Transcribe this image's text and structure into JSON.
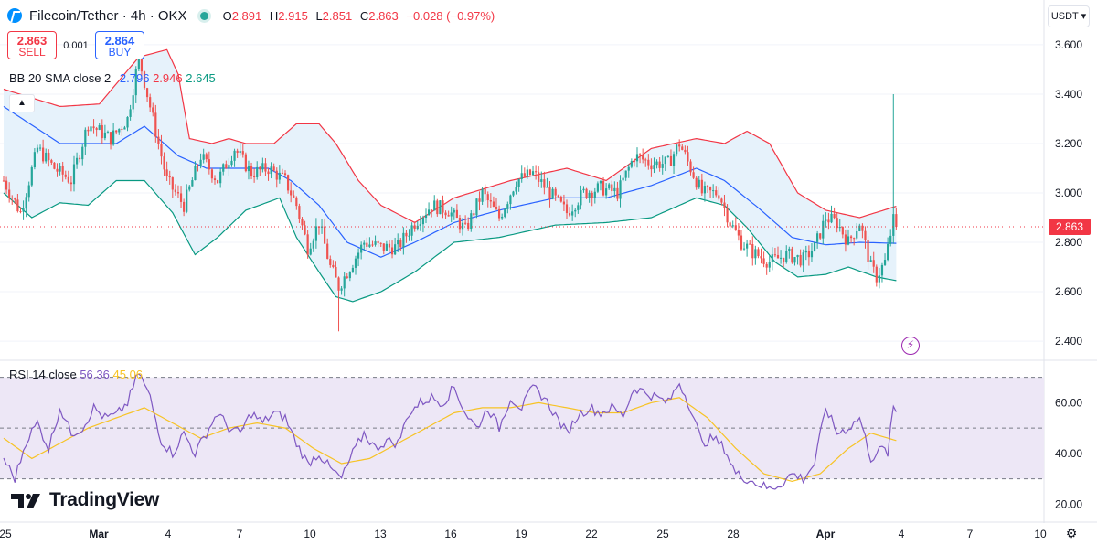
{
  "header": {
    "symbol": "Filecoin/Tether · 4h · OKX",
    "open_label": "O",
    "open": "2.891",
    "high_label": "H",
    "high": "2.915",
    "low_label": "L",
    "low": "2.851",
    "close_label": "C",
    "close": "2.863",
    "change": "−0.028 (−0.97%)"
  },
  "trade": {
    "sell_price": "2.863",
    "sell_label": "SELL",
    "spread": "0.001",
    "buy_price": "2.864",
    "buy_label": "BUY"
  },
  "bb_legend": {
    "title": "BB 20 SMA close 2",
    "basis": "2.796",
    "upper": "2.946",
    "lower": "2.645"
  },
  "rsi_legend": {
    "title": "RSI 14 close",
    "rsi": "56.36",
    "ma": "45.06"
  },
  "currency": "USDT",
  "last_price": "2.863",
  "brand": "TradingView",
  "colors": {
    "up": "#26a69a",
    "down": "#ef5350",
    "upper": "#f23645",
    "basis": "#2962ff",
    "lower": "#089981",
    "band_fill": "#e6f2fb",
    "rsi": "#7e57c2",
    "rsi_ma": "#f7c325",
    "rsi_zone": "#ede7f6"
  },
  "chart_data": [
    {
      "type": "candlestick",
      "title": "Filecoin/Tether · 4h · OKX",
      "x_ticks": [
        "25",
        "Mar",
        "4",
        "7",
        "10",
        "13",
        "16",
        "19",
        "22",
        "25",
        "28",
        "Apr",
        "4",
        "7",
        "10"
      ],
      "y_ticks": [
        "3.600",
        "3.400",
        "3.200",
        "3.000",
        "2.800",
        "2.600",
        "2.400"
      ],
      "ylim": [
        2.33,
        3.67
      ],
      "last": 2.863,
      "anchors": [
        {
          "t": 0,
          "c": 3.05
        },
        {
          "t": 6,
          "c": 2.92
        },
        {
          "t": 12,
          "c": 3.18
        },
        {
          "t": 18,
          "c": 3.1
        },
        {
          "t": 24,
          "c": 3.05
        },
        {
          "t": 30,
          "c": 3.28
        },
        {
          "t": 38,
          "c": 3.22
        },
        {
          "t": 44,
          "c": 3.3
        },
        {
          "t": 48,
          "c": 3.55
        },
        {
          "t": 52,
          "c": 3.35
        },
        {
          "t": 58,
          "c": 3.05
        },
        {
          "t": 64,
          "c": 2.95
        },
        {
          "t": 70,
          "c": 3.15
        },
        {
          "t": 76,
          "c": 3.05
        },
        {
          "t": 82,
          "c": 3.18
        },
        {
          "t": 88,
          "c": 3.08
        },
        {
          "t": 94,
          "c": 3.1
        },
        {
          "t": 100,
          "c": 3.05
        },
        {
          "t": 104,
          "c": 2.95
        },
        {
          "t": 108,
          "c": 2.78
        },
        {
          "t": 112,
          "c": 2.88
        },
        {
          "t": 116,
          "c": 2.7
        },
        {
          "t": 119,
          "c": 2.62
        },
        {
          "t": 124,
          "c": 2.72
        },
        {
          "t": 128,
          "c": 2.8
        },
        {
          "t": 134,
          "c": 2.78
        },
        {
          "t": 140,
          "c": 2.78
        },
        {
          "t": 146,
          "c": 2.88
        },
        {
          "t": 152,
          "c": 2.95
        },
        {
          "t": 158,
          "c": 2.93
        },
        {
          "t": 164,
          "c": 2.85
        },
        {
          "t": 170,
          "c": 3.0
        },
        {
          "t": 176,
          "c": 2.9
        },
        {
          "t": 182,
          "c": 3.05
        },
        {
          "t": 188,
          "c": 3.08
        },
        {
          "t": 194,
          "c": 3.0
        },
        {
          "t": 200,
          "c": 2.92
        },
        {
          "t": 206,
          "c": 3.0
        },
        {
          "t": 212,
          "c": 3.02
        },
        {
          "t": 218,
          "c": 3.0
        },
        {
          "t": 224,
          "c": 3.15
        },
        {
          "t": 230,
          "c": 3.12
        },
        {
          "t": 236,
          "c": 3.12
        },
        {
          "t": 240,
          "c": 3.2
        },
        {
          "t": 244,
          "c": 3.1
        },
        {
          "t": 248,
          "c": 3.0
        },
        {
          "t": 254,
          "c": 3.0
        },
        {
          "t": 258,
          "c": 2.88
        },
        {
          "t": 262,
          "c": 2.8
        },
        {
          "t": 266,
          "c": 2.76
        },
        {
          "t": 272,
          "c": 2.72
        },
        {
          "t": 278,
          "c": 2.75
        },
        {
          "t": 284,
          "c": 2.73
        },
        {
          "t": 288,
          "c": 2.78
        },
        {
          "t": 292,
          "c": 2.9
        },
        {
          "t": 296,
          "c": 2.88
        },
        {
          "t": 300,
          "c": 2.8
        },
        {
          "t": 304,
          "c": 2.88
        },
        {
          "t": 308,
          "c": 2.7
        },
        {
          "t": 310,
          "c": 2.66
        },
        {
          "t": 313,
          "c": 2.72
        },
        {
          "t": 316,
          "c": 2.89
        },
        {
          "t": 317,
          "c": 2.863
        }
      ],
      "basis_anchors": [
        {
          "t": 0,
          "v": 3.35
        },
        {
          "t": 20,
          "v": 3.2
        },
        {
          "t": 40,
          "v": 3.2
        },
        {
          "t": 50,
          "v": 3.27
        },
        {
          "t": 62,
          "v": 3.15
        },
        {
          "t": 72,
          "v": 3.1
        },
        {
          "t": 84,
          "v": 3.1
        },
        {
          "t": 94,
          "v": 3.1
        },
        {
          "t": 102,
          "v": 3.05
        },
        {
          "t": 112,
          "v": 2.95
        },
        {
          "t": 122,
          "v": 2.8
        },
        {
          "t": 134,
          "v": 2.74
        },
        {
          "t": 146,
          "v": 2.8
        },
        {
          "t": 160,
          "v": 2.88
        },
        {
          "t": 176,
          "v": 2.93
        },
        {
          "t": 196,
          "v": 2.98
        },
        {
          "t": 214,
          "v": 2.98
        },
        {
          "t": 230,
          "v": 3.03
        },
        {
          "t": 246,
          "v": 3.1
        },
        {
          "t": 256,
          "v": 3.05
        },
        {
          "t": 268,
          "v": 2.94
        },
        {
          "t": 280,
          "v": 2.82
        },
        {
          "t": 292,
          "v": 2.79
        },
        {
          "t": 304,
          "v": 2.8
        },
        {
          "t": 317,
          "v": 2.796
        }
      ],
      "upper_anchors": [
        {
          "t": 0,
          "v": 3.42
        },
        {
          "t": 20,
          "v": 3.35
        },
        {
          "t": 34,
          "v": 3.36
        },
        {
          "t": 48,
          "v": 3.55
        },
        {
          "t": 58,
          "v": 3.58
        },
        {
          "t": 62,
          "v": 3.48
        },
        {
          "t": 66,
          "v": 3.22
        },
        {
          "t": 74,
          "v": 3.2
        },
        {
          "t": 80,
          "v": 3.22
        },
        {
          "t": 86,
          "v": 3.2
        },
        {
          "t": 96,
          "v": 3.2
        },
        {
          "t": 104,
          "v": 3.28
        },
        {
          "t": 112,
          "v": 3.28
        },
        {
          "t": 118,
          "v": 3.2
        },
        {
          "t": 126,
          "v": 3.05
        },
        {
          "t": 134,
          "v": 2.95
        },
        {
          "t": 146,
          "v": 2.88
        },
        {
          "t": 160,
          "v": 2.98
        },
        {
          "t": 180,
          "v": 3.05
        },
        {
          "t": 200,
          "v": 3.1
        },
        {
          "t": 214,
          "v": 3.05
        },
        {
          "t": 230,
          "v": 3.18
        },
        {
          "t": 246,
          "v": 3.22
        },
        {
          "t": 256,
          "v": 3.2
        },
        {
          "t": 264,
          "v": 3.25
        },
        {
          "t": 272,
          "v": 3.2
        },
        {
          "t": 282,
          "v": 3.0
        },
        {
          "t": 292,
          "v": 2.93
        },
        {
          "t": 304,
          "v": 2.9
        },
        {
          "t": 317,
          "v": 2.946
        }
      ],
      "lower_anchors": [
        {
          "t": 0,
          "v": 3.0
        },
        {
          "t": 10,
          "v": 2.9
        },
        {
          "t": 20,
          "v": 2.96
        },
        {
          "t": 30,
          "v": 2.95
        },
        {
          "t": 40,
          "v": 3.05
        },
        {
          "t": 50,
          "v": 3.05
        },
        {
          "t": 60,
          "v": 2.92
        },
        {
          "t": 68,
          "v": 2.75
        },
        {
          "t": 76,
          "v": 2.82
        },
        {
          "t": 86,
          "v": 2.93
        },
        {
          "t": 98,
          "v": 2.98
        },
        {
          "t": 104,
          "v": 2.82
        },
        {
          "t": 112,
          "v": 2.68
        },
        {
          "t": 118,
          "v": 2.58
        },
        {
          "t": 124,
          "v": 2.56
        },
        {
          "t": 134,
          "v": 2.6
        },
        {
          "t": 146,
          "v": 2.68
        },
        {
          "t": 160,
          "v": 2.8
        },
        {
          "t": 176,
          "v": 2.82
        },
        {
          "t": 196,
          "v": 2.87
        },
        {
          "t": 214,
          "v": 2.88
        },
        {
          "t": 230,
          "v": 2.9
        },
        {
          "t": 246,
          "v": 2.98
        },
        {
          "t": 256,
          "v": 2.95
        },
        {
          "t": 264,
          "v": 2.86
        },
        {
          "t": 274,
          "v": 2.72
        },
        {
          "t": 282,
          "v": 2.66
        },
        {
          "t": 292,
          "v": 2.67
        },
        {
          "t": 300,
          "v": 2.7
        },
        {
          "t": 310,
          "v": 2.66
        },
        {
          "t": 317,
          "v": 2.645
        }
      ],
      "spike": {
        "t": 316,
        "high": 3.4
      },
      "dip": {
        "t": 119,
        "low": 2.44
      }
    },
    {
      "type": "line",
      "title": "RSI 14 close",
      "y_ticks": [
        "60.00",
        "40.00",
        "20.00"
      ],
      "ylim": [
        14,
        76
      ],
      "levels": [
        70,
        50,
        30
      ],
      "rsi_anchors": [
        {
          "t": 0,
          "v": 38
        },
        {
          "t": 4,
          "v": 30
        },
        {
          "t": 8,
          "v": 45
        },
        {
          "t": 12,
          "v": 52
        },
        {
          "t": 16,
          "v": 42
        },
        {
          "t": 20,
          "v": 58
        },
        {
          "t": 24,
          "v": 48
        },
        {
          "t": 28,
          "v": 50
        },
        {
          "t": 32,
          "v": 58
        },
        {
          "t": 36,
          "v": 54
        },
        {
          "t": 40,
          "v": 55
        },
        {
          "t": 44,
          "v": 60
        },
        {
          "t": 48,
          "v": 72
        },
        {
          "t": 52,
          "v": 62
        },
        {
          "t": 56,
          "v": 45
        },
        {
          "t": 60,
          "v": 40
        },
        {
          "t": 64,
          "v": 48
        },
        {
          "t": 68,
          "v": 40
        },
        {
          "t": 72,
          "v": 48
        },
        {
          "t": 76,
          "v": 56
        },
        {
          "t": 80,
          "v": 50
        },
        {
          "t": 84,
          "v": 48
        },
        {
          "t": 88,
          "v": 56
        },
        {
          "t": 92,
          "v": 52
        },
        {
          "t": 96,
          "v": 56
        },
        {
          "t": 100,
          "v": 54
        },
        {
          "t": 104,
          "v": 44
        },
        {
          "t": 108,
          "v": 36
        },
        {
          "t": 112,
          "v": 40
        },
        {
          "t": 116,
          "v": 34
        },
        {
          "t": 120,
          "v": 30
        },
        {
          "t": 124,
          "v": 40
        },
        {
          "t": 128,
          "v": 48
        },
        {
          "t": 132,
          "v": 42
        },
        {
          "t": 136,
          "v": 45
        },
        {
          "t": 140,
          "v": 44
        },
        {
          "t": 144,
          "v": 56
        },
        {
          "t": 148,
          "v": 60
        },
        {
          "t": 152,
          "v": 62
        },
        {
          "t": 156,
          "v": 60
        },
        {
          "t": 160,
          "v": 66
        },
        {
          "t": 164,
          "v": 56
        },
        {
          "t": 168,
          "v": 50
        },
        {
          "t": 172,
          "v": 58
        },
        {
          "t": 176,
          "v": 50
        },
        {
          "t": 180,
          "v": 62
        },
        {
          "t": 184,
          "v": 58
        },
        {
          "t": 188,
          "v": 66
        },
        {
          "t": 192,
          "v": 62
        },
        {
          "t": 196,
          "v": 55
        },
        {
          "t": 200,
          "v": 48
        },
        {
          "t": 204,
          "v": 55
        },
        {
          "t": 208,
          "v": 58
        },
        {
          "t": 212,
          "v": 56
        },
        {
          "t": 216,
          "v": 58
        },
        {
          "t": 220,
          "v": 55
        },
        {
          "t": 224,
          "v": 66
        },
        {
          "t": 228,
          "v": 64
        },
        {
          "t": 232,
          "v": 62
        },
        {
          "t": 236,
          "v": 60
        },
        {
          "t": 240,
          "v": 68
        },
        {
          "t": 244,
          "v": 58
        },
        {
          "t": 248,
          "v": 44
        },
        {
          "t": 252,
          "v": 46
        },
        {
          "t": 256,
          "v": 42
        },
        {
          "t": 260,
          "v": 32
        },
        {
          "t": 264,
          "v": 30
        },
        {
          "t": 268,
          "v": 28
        },
        {
          "t": 272,
          "v": 26
        },
        {
          "t": 276,
          "v": 28
        },
        {
          "t": 280,
          "v": 32
        },
        {
          "t": 284,
          "v": 30
        },
        {
          "t": 288,
          "v": 36
        },
        {
          "t": 292,
          "v": 58
        },
        {
          "t": 296,
          "v": 48
        },
        {
          "t": 300,
          "v": 50
        },
        {
          "t": 304,
          "v": 54
        },
        {
          "t": 308,
          "v": 38
        },
        {
          "t": 312,
          "v": 42
        },
        {
          "t": 314,
          "v": 40
        },
        {
          "t": 316,
          "v": 58
        },
        {
          "t": 317,
          "v": 56.36
        }
      ],
      "ma_anchors": [
        {
          "t": 0,
          "v": 46
        },
        {
          "t": 10,
          "v": 38
        },
        {
          "t": 20,
          "v": 44
        },
        {
          "t": 30,
          "v": 50
        },
        {
          "t": 40,
          "v": 54
        },
        {
          "t": 50,
          "v": 58
        },
        {
          "t": 60,
          "v": 52
        },
        {
          "t": 70,
          "v": 46
        },
        {
          "t": 80,
          "v": 50
        },
        {
          "t": 90,
          "v": 52
        },
        {
          "t": 100,
          "v": 50
        },
        {
          "t": 110,
          "v": 42
        },
        {
          "t": 120,
          "v": 36
        },
        {
          "t": 130,
          "v": 38
        },
        {
          "t": 140,
          "v": 44
        },
        {
          "t": 150,
          "v": 50
        },
        {
          "t": 160,
          "v": 56
        },
        {
          "t": 170,
          "v": 58
        },
        {
          "t": 180,
          "v": 58
        },
        {
          "t": 190,
          "v": 60
        },
        {
          "t": 200,
          "v": 58
        },
        {
          "t": 210,
          "v": 56
        },
        {
          "t": 220,
          "v": 56
        },
        {
          "t": 230,
          "v": 60
        },
        {
          "t": 240,
          "v": 62
        },
        {
          "t": 250,
          "v": 54
        },
        {
          "t": 260,
          "v": 42
        },
        {
          "t": 270,
          "v": 32
        },
        {
          "t": 280,
          "v": 29
        },
        {
          "t": 290,
          "v": 32
        },
        {
          "t": 300,
          "v": 42
        },
        {
          "t": 308,
          "v": 48
        },
        {
          "t": 317,
          "v": 45.06
        }
      ]
    }
  ]
}
